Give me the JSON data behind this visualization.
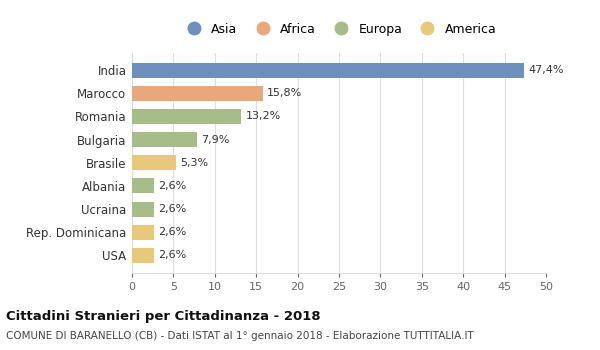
{
  "countries": [
    "India",
    "Marocco",
    "Romania",
    "Bulgaria",
    "Brasile",
    "Albania",
    "Ucraina",
    "Rep. Dominicana",
    "USA"
  ],
  "values": [
    47.4,
    15.8,
    13.2,
    7.9,
    5.3,
    2.6,
    2.6,
    2.6,
    2.6
  ],
  "labels": [
    "47,4%",
    "15,8%",
    "13,2%",
    "7,9%",
    "5,3%",
    "2,6%",
    "2,6%",
    "2,6%",
    "2,6%"
  ],
  "colors": [
    "#6f8fbe",
    "#e8a87c",
    "#a8bc8a",
    "#a8bc8a",
    "#e8c87a",
    "#a8bc8a",
    "#a8bc8a",
    "#e8c87a",
    "#e8c87a"
  ],
  "legend_labels": [
    "Asia",
    "Africa",
    "Europa",
    "America"
  ],
  "legend_colors": [
    "#6f8fbe",
    "#e8a87c",
    "#a8bc8a",
    "#e8c87a"
  ],
  "title": "Cittadini Stranieri per Cittadinanza - 2018",
  "subtitle": "COMUNE DI BARANELLO (CB) - Dati ISTAT al 1° gennaio 2018 - Elaborazione TUTTITALIA.IT",
  "xlim": [
    0,
    50
  ],
  "xticks": [
    0,
    5,
    10,
    15,
    20,
    25,
    30,
    35,
    40,
    45,
    50
  ],
  "background_color": "#ffffff",
  "grid_color": "#dddddd"
}
